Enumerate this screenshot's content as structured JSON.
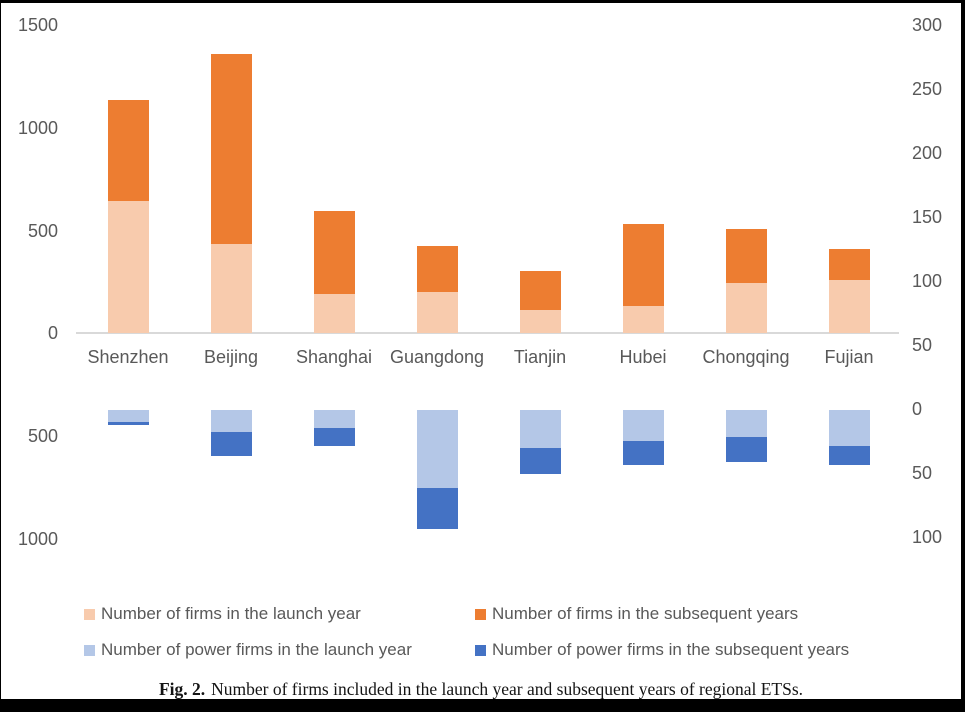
{
  "chart_data": {
    "type": "bar",
    "subtype": "dual-stacked-column; firm counts stacked upward on left axis, power-firm counts stacked downward on right axis",
    "categories": [
      "Shenzhen",
      "Beijing",
      "Shanghai",
      "Guangdong",
      "Tianjin",
      "Hubei",
      "Chongqing",
      "Fujian"
    ],
    "series": [
      {
        "name": "Number of firms in the launch year",
        "axis": "left",
        "direction": "up",
        "color": "#F8CBAD",
        "values": [
          640,
          430,
          190,
          200,
          110,
          130,
          245,
          255
        ]
      },
      {
        "name": "Number of firms in the subsequent years",
        "axis": "left",
        "direction": "up",
        "color": "#ED7D31",
        "values": [
          490,
          925,
          400,
          220,
          190,
          400,
          260,
          155
        ]
      },
      {
        "name": "Number of power firms in the launch year",
        "axis": "right",
        "direction": "down",
        "color": "#B4C7E7",
        "values": [
          9,
          17,
          14,
          61,
          30,
          24,
          21,
          28
        ]
      },
      {
        "name": "Number of power firms in the subsequent years",
        "axis": "right",
        "direction": "down",
        "color": "#4472C4",
        "values": [
          3,
          19,
          14,
          32,
          20,
          19,
          20,
          15
        ]
      }
    ],
    "left_axis": {
      "ticks": [
        "1500",
        "1000",
        "500",
        "0",
        "500",
        "1000"
      ],
      "upper_range": [
        0,
        1500
      ],
      "lower_range_downward": [
        0,
        1000
      ]
    },
    "right_axis": {
      "ticks": [
        "300",
        "250",
        "200",
        "150",
        "100",
        "50",
        "0",
        "50",
        "100"
      ],
      "upper_range": [
        0,
        300
      ],
      "lower_range_downward": [
        0,
        100
      ]
    },
    "grid": false,
    "legend_position": "bottom",
    "axis_line_color": "#d9d9d9",
    "tick_label_color": "#595959"
  },
  "caption": {
    "prefix": "Fig. 2.",
    "text": "Number of firms included in the launch year and subsequent years of regional ETSs."
  }
}
